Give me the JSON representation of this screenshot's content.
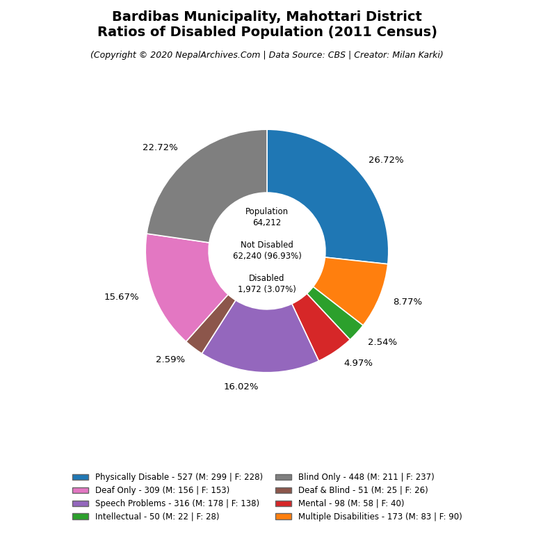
{
  "chart_data": {
    "type": "pie",
    "title": "Bardibas Municipality, Mahottari District\nRatios of Disabled Population (2011 Census)",
    "subtitle": "(Copyright © 2020 NepalArchives.Com | Data Source: CBS | Creator: Milan Karki)",
    "categories": [
      "Physically Disable - 527 (M: 299 | F: 228)",
      "Multiple Disabilities - 173 (M: 83 | F: 90)",
      "Intellectual - 50 (M: 22 | F: 28)",
      "Mental - 98 (M: 58 | F: 40)",
      "Speech Problems - 316 (M: 178 | F: 138)",
      "Deaf & Blind - 51 (M: 25 | F: 26)",
      "Deaf Only - 309 (M: 156 | F: 153)",
      "Blind Only - 448 (M: 211 | F: 237)"
    ],
    "values": [
      26.72,
      8.77,
      2.54,
      4.97,
      16.02,
      2.59,
      15.67,
      22.72
    ],
    "value_labels": [
      "26.72%",
      "8.77%",
      "2.54%",
      "4.97%",
      "16.02%",
      "2.59%",
      "15.67%",
      "22.72%"
    ],
    "data_labels": true,
    "annotations": [
      "Population\n64,212",
      "Not Disabled\n62,240 (96.93%)",
      "Disabled\n1,972 (3.07%)"
    ],
    "legend": "lower center",
    "legend_entries": [
      "Physically Disable - 527 (M: 299 | F: 228)",
      "Deaf Only - 309 (M: 156 | F: 153)",
      "Speech Problems - 316 (M: 178 | F: 138)",
      "Intellectual - 50 (M: 22 | F: 28)",
      "Blind Only - 448 (M: 211 | F: 237)",
      "Deaf & Blind - 51 (M: 25 | F: 26)",
      "Mental - 98 (M: 58 | F: 40)",
      "Multiple Disabilities - 173 (M: 83 | F: 90)"
    ]
  }
}
